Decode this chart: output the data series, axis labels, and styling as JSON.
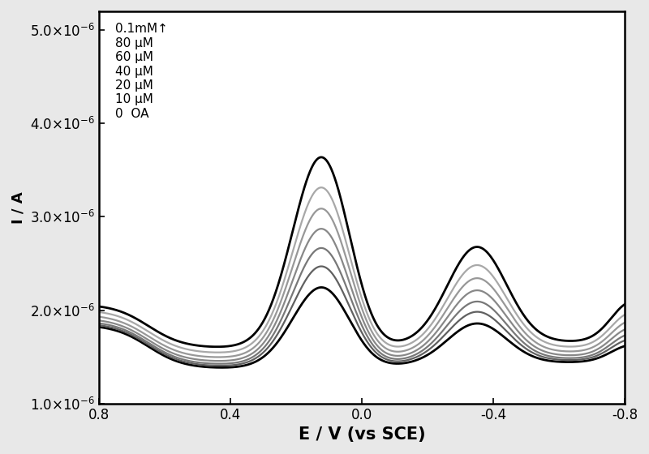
{
  "xlabel": "E / V (vs SCE)",
  "ylabel": "I / A",
  "xlim": [
    0.8,
    -0.8
  ],
  "ylim": [
    1e-06,
    5.2e-06
  ],
  "yticks": [
    1e-06,
    2e-06,
    3e-06,
    4e-06,
    5e-06
  ],
  "xticks": [
    0.8,
    0.4,
    0.0,
    -0.4,
    -0.8
  ],
  "xticklabels": [
    "0.8",
    "0.4",
    "0.0",
    "-0.4",
    "-0.8"
  ],
  "yticklabels": [
    "1.0×10⁻⁶",
    "2.0×10⁻⁶",
    "3.0×10⁻⁶",
    "4.0×10⁻⁶",
    "5.0×10⁻⁶"
  ],
  "legend_labels": [
    "0.1mM↑",
    "80 μM",
    "60 μM",
    "40 μM",
    "20 μM",
    "10 μM",
    "0  OA"
  ],
  "xlabel_fontsize": 15,
  "ylabel_fontsize": 13,
  "tick_fontsize": 12,
  "legend_fontsize": 11,
  "background_color": "#ffffff",
  "fig_facecolor": "#e8e8e8"
}
